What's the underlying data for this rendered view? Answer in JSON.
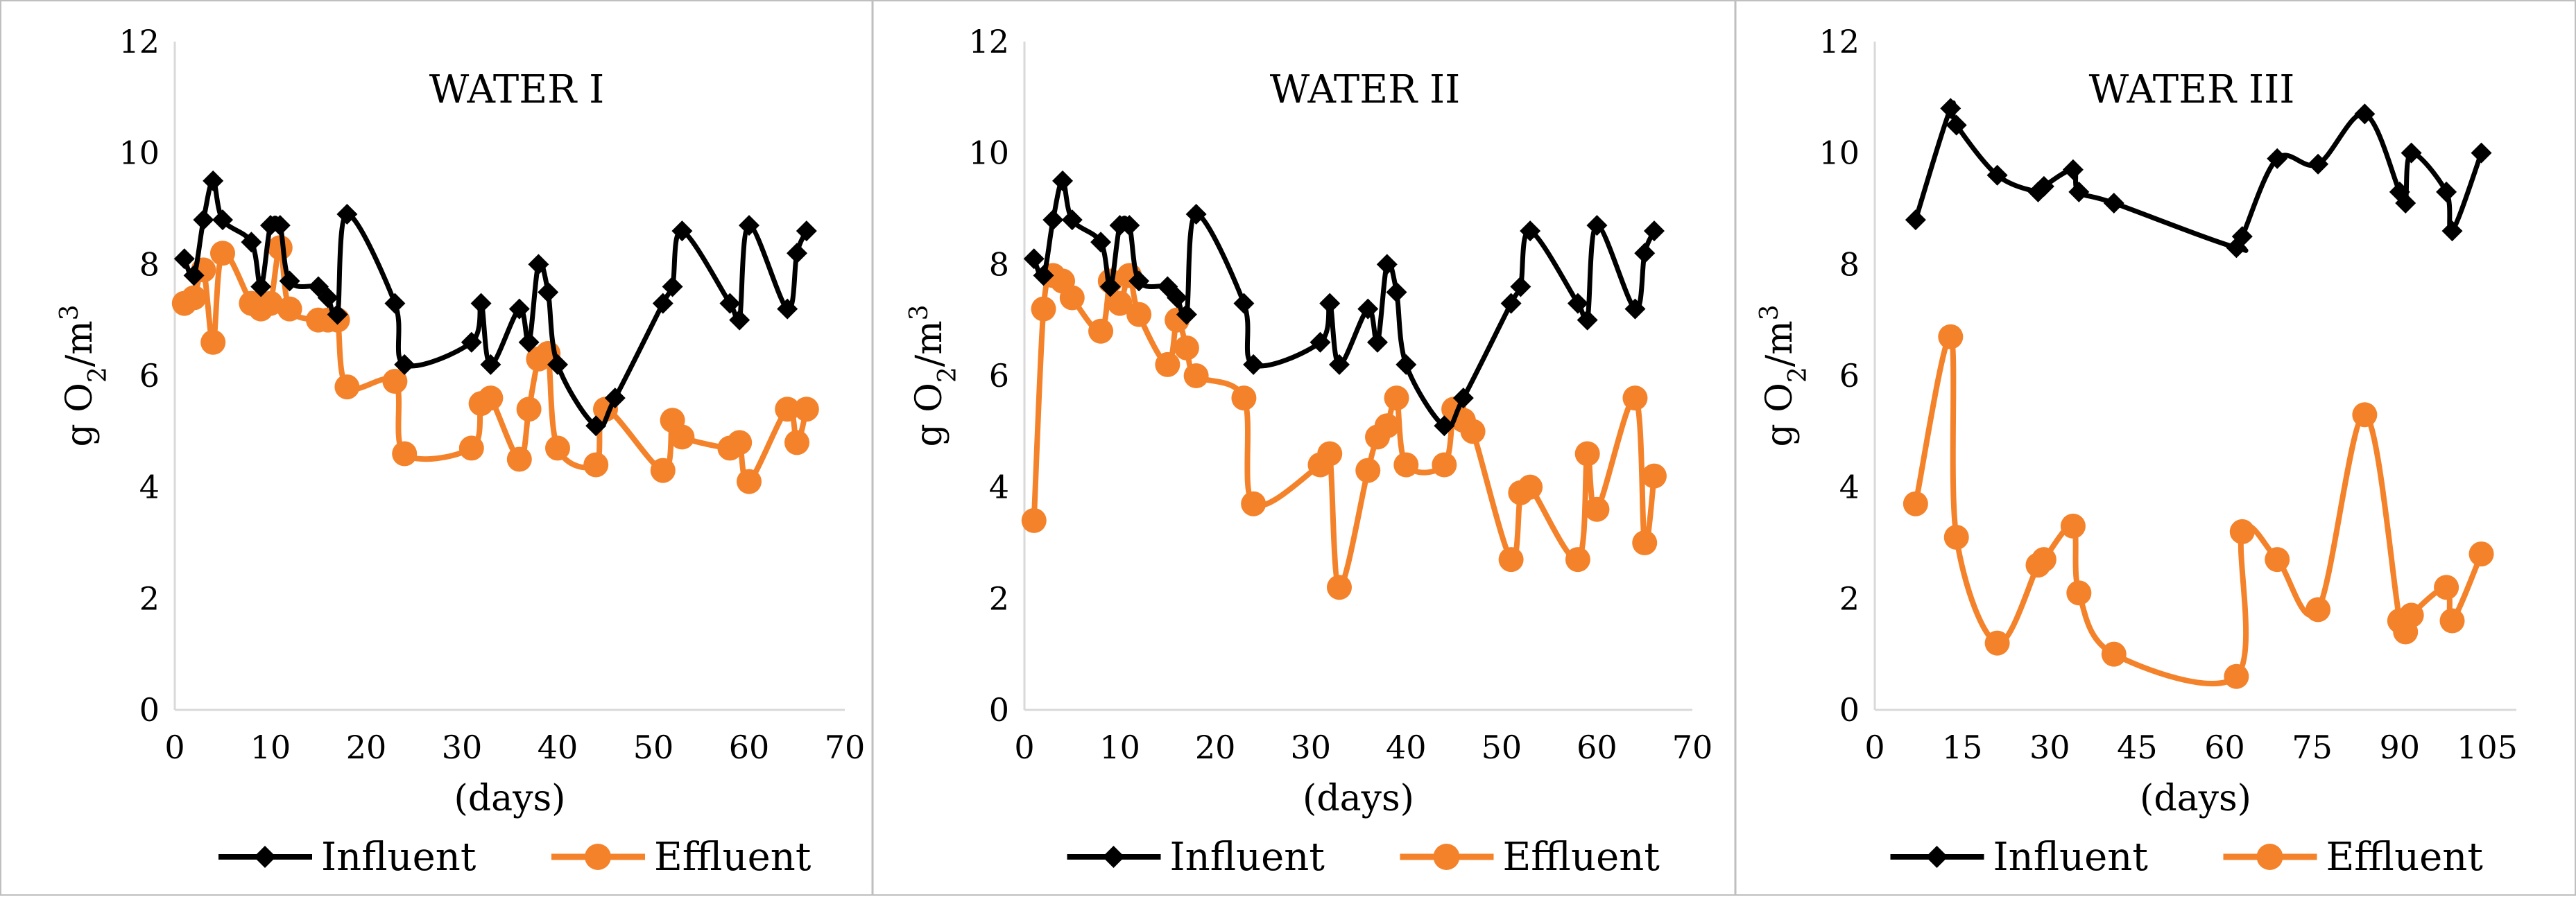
{
  "colors": {
    "influent": "#000000",
    "effluent": "#F4822A",
    "axis": "#d9d9d9",
    "frame": "#bfbfbf"
  },
  "chart_data": [
    {
      "type": "line",
      "title": "WATER I",
      "xlabel": "(days)",
      "ylabel": "g O2/m3",
      "ylabel_main": "g O",
      "ylabel_sub": "2",
      "ylabel_slash": "/m",
      "ylabel_sup": "3",
      "xlim": [
        0,
        70
      ],
      "ylim": [
        0,
        12
      ],
      "xticks": [
        0,
        10,
        20,
        30,
        40,
        50,
        60,
        70
      ],
      "yticks": [
        0,
        2,
        4,
        6,
        8,
        10,
        12
      ],
      "legend_position": "bottom",
      "series": [
        {
          "name": "Influent",
          "marker": "diamond",
          "x": [
            1,
            2,
            3,
            4,
            5,
            8,
            9,
            10,
            11,
            12,
            15,
            16,
            17,
            18,
            23,
            24,
            31,
            32,
            33,
            36,
            37,
            38,
            39,
            40,
            44,
            46,
            51,
            52,
            53,
            58,
            59,
            60,
            64,
            65,
            66
          ],
          "y": [
            8.1,
            7.8,
            8.8,
            9.5,
            8.8,
            8.4,
            7.6,
            8.7,
            8.7,
            7.7,
            7.6,
            7.4,
            7.1,
            8.9,
            7.3,
            6.2,
            6.6,
            7.3,
            6.2,
            7.2,
            6.6,
            8.0,
            7.5,
            6.2,
            5.1,
            5.6,
            7.3,
            7.6,
            8.6,
            7.3,
            7.0,
            8.7,
            7.2,
            8.2,
            8.6
          ]
        },
        {
          "name": "Effluent",
          "marker": "circle",
          "x": [
            1,
            2,
            3,
            4,
            5,
            8,
            9,
            10,
            11,
            12,
            15,
            16,
            17,
            18,
            23,
            24,
            31,
            32,
            33,
            36,
            37,
            38,
            39,
            40,
            44,
            45,
            51,
            52,
            53,
            58,
            59,
            60,
            64,
            65,
            66
          ],
          "y": [
            7.3,
            7.4,
            7.9,
            6.6,
            8.2,
            7.3,
            7.2,
            7.3,
            8.3,
            7.2,
            7.0,
            7.0,
            7.0,
            5.8,
            5.9,
            4.6,
            4.7,
            5.5,
            5.6,
            4.5,
            5.4,
            6.3,
            6.4,
            4.7,
            4.4,
            5.4,
            4.3,
            5.2,
            4.9,
            4.7,
            4.8,
            4.1,
            5.4,
            4.8,
            5.4
          ]
        }
      ]
    },
    {
      "type": "line",
      "title": "WATER II",
      "xlabel": "(days)",
      "ylabel": "g O2/m3",
      "ylabel_main": "g O",
      "ylabel_sub": "2",
      "ylabel_slash": "/m",
      "ylabel_sup": "3",
      "xlim": [
        0,
        70
      ],
      "ylim": [
        0,
        12
      ],
      "xticks": [
        0,
        10,
        20,
        30,
        40,
        50,
        60,
        70
      ],
      "yticks": [
        0,
        2,
        4,
        6,
        8,
        10,
        12
      ],
      "legend_position": "bottom",
      "series": [
        {
          "name": "Influent",
          "marker": "diamond",
          "x": [
            1,
            2,
            3,
            4,
            5,
            8,
            9,
            10,
            11,
            12,
            15,
            16,
            17,
            18,
            23,
            24,
            31,
            32,
            33,
            36,
            37,
            38,
            39,
            40,
            44,
            46,
            51,
            52,
            53,
            58,
            59,
            60,
            64,
            65,
            66
          ],
          "y": [
            8.1,
            7.8,
            8.8,
            9.5,
            8.8,
            8.4,
            7.6,
            8.7,
            8.7,
            7.7,
            7.6,
            7.4,
            7.1,
            8.9,
            7.3,
            6.2,
            6.6,
            7.3,
            6.2,
            7.2,
            6.6,
            8.0,
            7.5,
            6.2,
            5.1,
            5.6,
            7.3,
            7.6,
            8.6,
            7.3,
            7.0,
            8.7,
            7.2,
            8.2,
            8.6
          ]
        },
        {
          "name": "Effluent",
          "marker": "circle",
          "x": [
            1,
            2,
            3,
            4,
            5,
            8,
            9,
            10,
            11,
            12,
            15,
            16,
            17,
            18,
            23,
            24,
            31,
            32,
            33,
            36,
            37,
            38,
            39,
            40,
            44,
            45,
            46,
            47,
            51,
            52,
            53,
            58,
            59,
            60,
            64,
            65,
            66
          ],
          "y": [
            3.4,
            7.2,
            7.8,
            7.7,
            7.4,
            6.8,
            7.7,
            7.3,
            7.8,
            7.1,
            6.2,
            7.0,
            6.5,
            6.0,
            5.6,
            3.7,
            4.4,
            4.6,
            2.2,
            4.3,
            4.9,
            5.1,
            5.6,
            4.4,
            4.4,
            5.4,
            5.2,
            5.0,
            2.7,
            3.9,
            4.0,
            2.7,
            4.6,
            3.6,
            5.6,
            3.0,
            4.2
          ]
        }
      ]
    },
    {
      "type": "line",
      "title": "WATER III",
      "xlabel": "(days)",
      "ylabel": "g O2/m3",
      "ylabel_main": "g O",
      "ylabel_sub": "2",
      "ylabel_slash": "/m",
      "ylabel_sup": "3",
      "xlim": [
        0,
        110
      ],
      "ylim": [
        0,
        12
      ],
      "xticks": [
        0,
        15,
        30,
        45,
        60,
        75,
        90,
        105
      ],
      "yticks": [
        0,
        2,
        4,
        6,
        8,
        10,
        12
      ],
      "legend_position": "bottom",
      "series": [
        {
          "name": "Influent",
          "marker": "diamond",
          "x": [
            7,
            13,
            14,
            21,
            28,
            29,
            34,
            35,
            41,
            62,
            63,
            69,
            76,
            84,
            90,
            91,
            92,
            98,
            99,
            104
          ],
          "y": [
            8.8,
            10.8,
            10.5,
            9.6,
            9.3,
            9.4,
            9.7,
            9.3,
            9.1,
            8.3,
            8.5,
            9.9,
            9.8,
            10.7,
            9.3,
            9.1,
            10.0,
            9.3,
            8.6,
            10.0
          ]
        },
        {
          "name": "Effluent",
          "marker": "circle",
          "x": [
            7,
            13,
            14,
            21,
            28,
            29,
            34,
            35,
            41,
            62,
            63,
            69,
            76,
            84,
            90,
            91,
            92,
            98,
            99,
            104
          ],
          "y": [
            3.7,
            6.7,
            3.1,
            1.2,
            2.6,
            2.7,
            3.3,
            2.1,
            1.0,
            0.6,
            3.2,
            2.7,
            1.8,
            5.3,
            1.6,
            1.4,
            1.7,
            2.2,
            1.6,
            2.8
          ]
        }
      ]
    }
  ]
}
